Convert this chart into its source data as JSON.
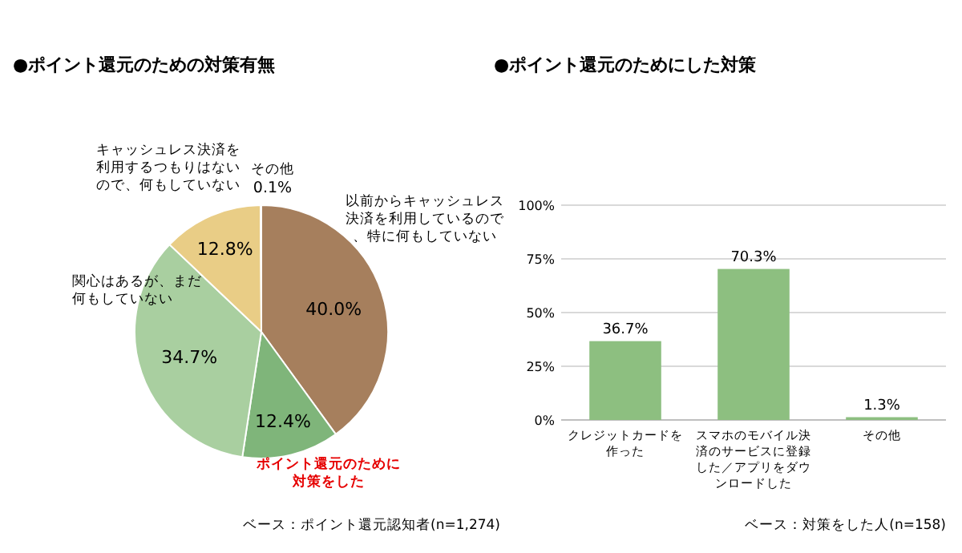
{
  "chart_data": [
    {
      "type": "pie",
      "title": "●ポイント還元のための対策有無",
      "categories": [
        "以前からキャッシュレス決済を利用しているので、特に何もしていない",
        "ポイント還元のために対策をした",
        "関心はあるが、まだ何もしていない",
        "キャッシュレス決済を利用するつもりはないので、何もしていない",
        "その他"
      ],
      "values": [
        40.0,
        12.4,
        34.7,
        12.8,
        0.1
      ],
      "value_labels": [
        "40.0%",
        "12.4%",
        "34.7%",
        "12.8%",
        "0.1%"
      ],
      "colors": [
        "#a67f5d",
        "#7fb57a",
        "#a9cfa0",
        "#e9cd86",
        "#bfbfbf"
      ],
      "annotations": [
        "ベース：ポイント還元認知者(n=1,274)"
      ]
    },
    {
      "type": "bar",
      "title": "●ポイント還元のためにした対策",
      "categories": [
        "クレジットカードを作った",
        "スマホのモバイル決済のサービスに登録した／アプリをダウンロードした",
        "その他"
      ],
      "values": [
        36.7,
        70.3,
        1.3
      ],
      "value_labels": [
        "36.7%",
        "70.3%",
        "1.3%"
      ],
      "color": "#8dbf80",
      "ylim": [
        0,
        100
      ],
      "yticks": [
        {
          "value": 0,
          "label": "0%"
        },
        {
          "value": 25,
          "label": "25%"
        },
        {
          "value": 50,
          "label": "50%"
        },
        {
          "value": 75,
          "label": "75%"
        },
        {
          "value": 100,
          "label": "100%"
        }
      ],
      "grid": "y",
      "annotations": [
        "ベース：対策をした人(n=158)"
      ]
    }
  ]
}
